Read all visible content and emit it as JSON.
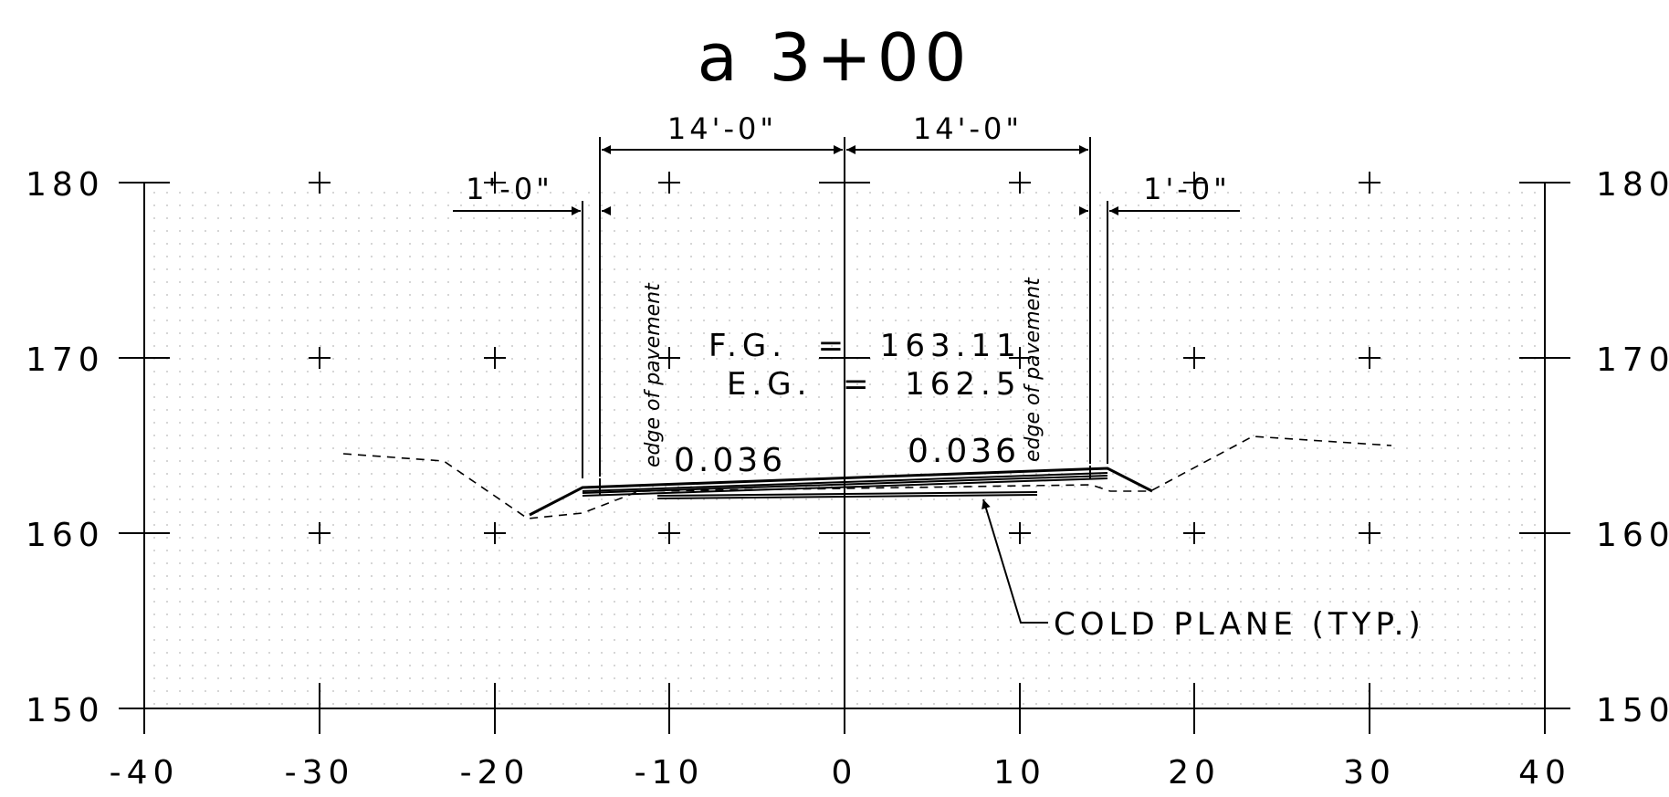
{
  "title": "a 3+00",
  "y_axis": {
    "labels": [
      "180",
      "170",
      "160",
      "150"
    ]
  },
  "x_axis": {
    "labels": [
      "-40",
      "-30",
      "-20",
      "-10",
      "0",
      "10",
      "20",
      "30",
      "40"
    ]
  },
  "dimensions": {
    "lane_left": "14'-0\"",
    "lane_right": "14'-0\"",
    "shoulder_left": "1'-0\"",
    "shoulder_right": "1'-0\""
  },
  "elevations": {
    "finished_grade": "F.G.  =  163.11",
    "existing_grade": "E.G.  =  162.5"
  },
  "slopes": {
    "left": "0.036",
    "right": "0.036"
  },
  "edge_labels": {
    "left": "edge of pavement",
    "right": "edge of pavement"
  },
  "callout": "COLD PLANE (TYP.)"
}
